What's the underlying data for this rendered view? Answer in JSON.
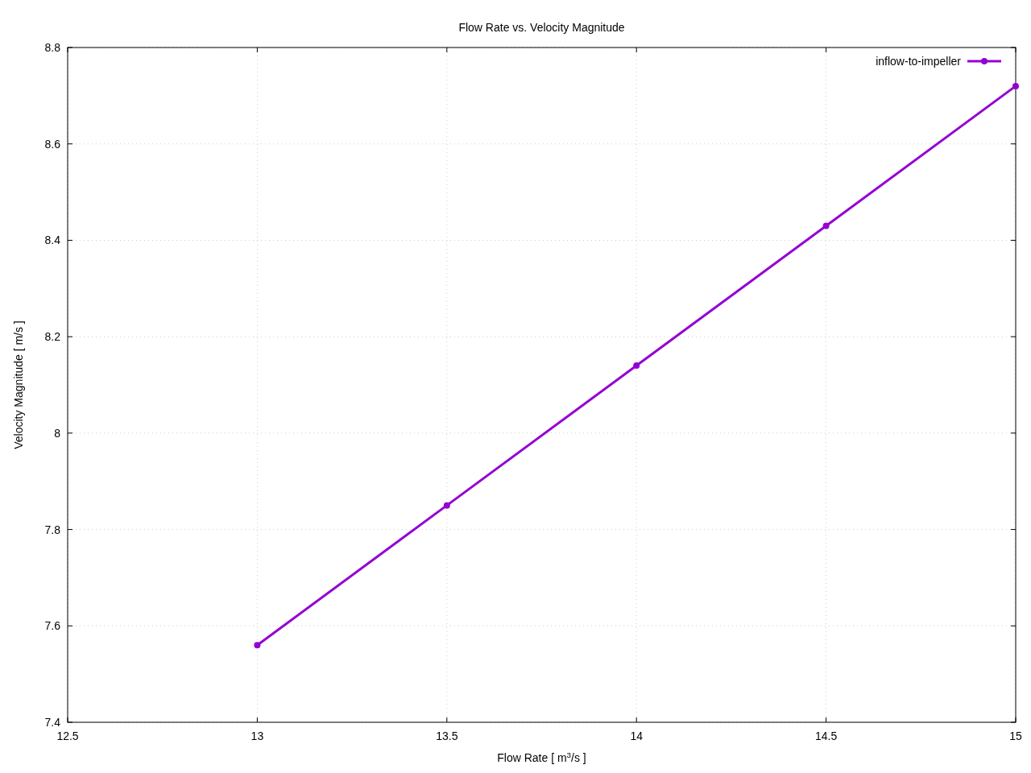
{
  "chart_data": {
    "type": "line",
    "title": "Flow Rate vs. Velocity Magnitude",
    "xlabel": "Flow Rate [ m$^{3}$/s ]",
    "ylabel": "Velocity Magnitude [ m/s ]",
    "x": [
      13,
      13.5,
      14,
      14.5,
      15
    ],
    "series": [
      {
        "name": "inflow-to-impeller",
        "color": "#9400d3",
        "values": [
          7.56,
          7.85,
          8.14,
          8.43,
          8.72
        ]
      }
    ],
    "xlim": [
      12.5,
      15
    ],
    "xticks": [
      12.5,
      13,
      13.5,
      14,
      14.5,
      15
    ],
    "ylim": [
      7.4,
      8.8
    ],
    "yticks": [
      7.4,
      7.6,
      7.8,
      8,
      8.2,
      8.4,
      8.6,
      8.8
    ],
    "grid": true,
    "legend": "top right",
    "marker": "circle",
    "line_style": "solid"
  }
}
